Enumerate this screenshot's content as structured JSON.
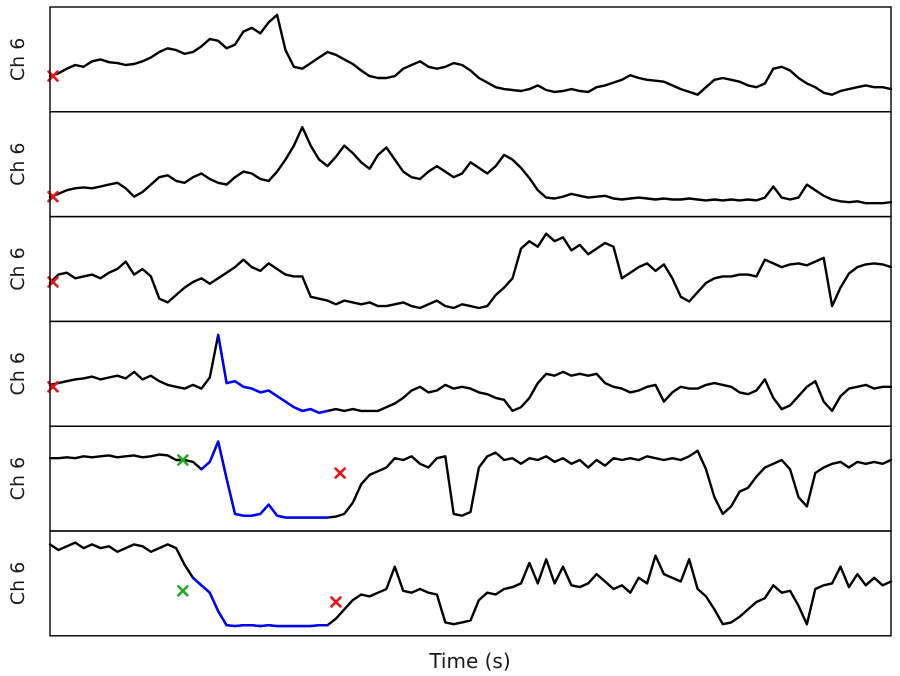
{
  "figure": {
    "xlabel": "Time (s)"
  },
  "colors": {
    "signal": "#000000",
    "highlight": "#0000ff",
    "start_marker": "#22aa22",
    "end_marker": "#e8141c"
  },
  "chart_data": [
    {
      "type": "line",
      "ylabel": "Ch 6",
      "x_range": [
        0,
        100
      ],
      "y_range": [
        0,
        1
      ],
      "grid": false,
      "series": [
        {
          "values": [
            0.32,
            0.35,
            0.4,
            0.44,
            0.42,
            0.48,
            0.5,
            0.47,
            0.46,
            0.44,
            0.45,
            0.48,
            0.52,
            0.58,
            0.62,
            0.6,
            0.56,
            0.58,
            0.64,
            0.72,
            0.7,
            0.62,
            0.66,
            0.8,
            0.84,
            0.78,
            0.9,
            0.98,
            0.6,
            0.42,
            0.4,
            0.46,
            0.52,
            0.58,
            0.55,
            0.5,
            0.45,
            0.38,
            0.32,
            0.3,
            0.3,
            0.32,
            0.4,
            0.44,
            0.48,
            0.42,
            0.4,
            0.42,
            0.46,
            0.44,
            0.38,
            0.3,
            0.25,
            0.2,
            0.18,
            0.17,
            0.16,
            0.18,
            0.22,
            0.17,
            0.15,
            0.16,
            0.18,
            0.16,
            0.15,
            0.2,
            0.22,
            0.25,
            0.28,
            0.33,
            0.3,
            0.28,
            0.27,
            0.26,
            0.22,
            0.18,
            0.15,
            0.12,
            0.2,
            0.28,
            0.3,
            0.28,
            0.26,
            0.22,
            0.2,
            0.24,
            0.4,
            0.42,
            0.38,
            0.3,
            0.24,
            0.2,
            0.14,
            0.12,
            0.16,
            0.18,
            0.2,
            0.22,
            0.2,
            0.2,
            0.18
          ]
        }
      ],
      "highlight": null,
      "markers": [
        {
          "shape": "x",
          "color_key": "end_marker",
          "x": 0.2,
          "y": 0.32
        }
      ]
    },
    {
      "type": "line",
      "ylabel": "Ch 6",
      "x_range": [
        0,
        100
      ],
      "y_range": [
        0,
        1
      ],
      "grid": false,
      "series": [
        {
          "values": [
            0.15,
            0.18,
            0.22,
            0.24,
            0.25,
            0.24,
            0.26,
            0.28,
            0.3,
            0.24,
            0.15,
            0.2,
            0.28,
            0.36,
            0.38,
            0.32,
            0.3,
            0.36,
            0.4,
            0.34,
            0.3,
            0.28,
            0.36,
            0.42,
            0.4,
            0.34,
            0.32,
            0.42,
            0.55,
            0.7,
            0.9,
            0.7,
            0.55,
            0.48,
            0.58,
            0.7,
            0.62,
            0.52,
            0.45,
            0.6,
            0.68,
            0.55,
            0.42,
            0.36,
            0.34,
            0.42,
            0.48,
            0.42,
            0.36,
            0.4,
            0.52,
            0.46,
            0.4,
            0.48,
            0.6,
            0.55,
            0.46,
            0.35,
            0.22,
            0.14,
            0.13,
            0.15,
            0.18,
            0.16,
            0.14,
            0.15,
            0.16,
            0.13,
            0.12,
            0.13,
            0.14,
            0.13,
            0.12,
            0.13,
            0.12,
            0.12,
            0.13,
            0.12,
            0.11,
            0.12,
            0.11,
            0.12,
            0.11,
            0.12,
            0.11,
            0.14,
            0.26,
            0.14,
            0.12,
            0.14,
            0.28,
            0.22,
            0.16,
            0.12,
            0.1,
            0.09,
            0.1,
            0.08,
            0.08,
            0.08,
            0.09
          ]
        }
      ],
      "highlight": null,
      "markers": [
        {
          "shape": "x",
          "color_key": "end_marker",
          "x": 0.2,
          "y": 0.15
        }
      ]
    },
    {
      "type": "line",
      "ylabel": "Ch 6",
      "x_range": [
        0,
        100
      ],
      "y_range": [
        0,
        1
      ],
      "grid": false,
      "series": [
        {
          "values": [
            0.35,
            0.44,
            0.46,
            0.4,
            0.42,
            0.44,
            0.4,
            0.46,
            0.5,
            0.58,
            0.44,
            0.5,
            0.42,
            0.18,
            0.14,
            0.22,
            0.3,
            0.36,
            0.4,
            0.34,
            0.4,
            0.46,
            0.52,
            0.6,
            0.52,
            0.48,
            0.56,
            0.5,
            0.44,
            0.42,
            0.42,
            0.2,
            0.18,
            0.16,
            0.12,
            0.16,
            0.14,
            0.12,
            0.14,
            0.1,
            0.1,
            0.12,
            0.14,
            0.1,
            0.08,
            0.12,
            0.16,
            0.1,
            0.08,
            0.12,
            0.1,
            0.08,
            0.1,
            0.22,
            0.3,
            0.4,
            0.72,
            0.8,
            0.74,
            0.88,
            0.8,
            0.84,
            0.7,
            0.76,
            0.66,
            0.72,
            0.78,
            0.74,
            0.4,
            0.46,
            0.52,
            0.56,
            0.48,
            0.55,
            0.4,
            0.2,
            0.15,
            0.25,
            0.35,
            0.4,
            0.42,
            0.42,
            0.44,
            0.44,
            0.42,
            0.6,
            0.56,
            0.52,
            0.55,
            0.56,
            0.54,
            0.58,
            0.62,
            0.1,
            0.3,
            0.45,
            0.52,
            0.55,
            0.56,
            0.55,
            0.52
          ]
        }
      ],
      "highlight": null,
      "markers": [
        {
          "shape": "x",
          "color_key": "end_marker",
          "x": 0.2,
          "y": 0.36
        }
      ]
    },
    {
      "type": "line",
      "ylabel": "Ch 6",
      "x_range": [
        0,
        100
      ],
      "y_range": [
        0,
        1
      ],
      "grid": false,
      "series": [
        {
          "values": [
            0.38,
            0.4,
            0.42,
            0.44,
            0.45,
            0.47,
            0.44,
            0.46,
            0.48,
            0.45,
            0.52,
            0.44,
            0.48,
            0.42,
            0.38,
            0.36,
            0.34,
            0.38,
            0.34,
            0.46,
            0.92,
            0.4,
            0.42,
            0.36,
            0.34,
            0.3,
            0.32,
            0.26,
            0.2,
            0.14,
            0.1,
            0.12,
            0.08,
            0.1,
            0.12,
            0.1,
            0.12,
            0.1,
            0.1,
            0.1,
            0.14,
            0.18,
            0.24,
            0.32,
            0.36,
            0.3,
            0.32,
            0.38,
            0.34,
            0.36,
            0.34,
            0.3,
            0.28,
            0.24,
            0.22,
            0.1,
            0.14,
            0.24,
            0.4,
            0.5,
            0.48,
            0.52,
            0.48,
            0.5,
            0.48,
            0.5,
            0.4,
            0.36,
            0.34,
            0.3,
            0.32,
            0.36,
            0.38,
            0.2,
            0.3,
            0.36,
            0.34,
            0.34,
            0.38,
            0.4,
            0.38,
            0.36,
            0.3,
            0.28,
            0.32,
            0.44,
            0.24,
            0.12,
            0.16,
            0.26,
            0.36,
            0.42,
            0.2,
            0.1,
            0.26,
            0.34,
            0.36,
            0.38,
            0.34,
            0.36,
            0.36
          ]
        }
      ],
      "highlight": {
        "x_start": 19.5,
        "x_end": 33.0
      },
      "markers": [
        {
          "shape": "x",
          "color_key": "end_marker",
          "x": 0.2,
          "y": 0.36
        }
      ]
    },
    {
      "type": "line",
      "ylabel": "Ch 6",
      "x_range": [
        0,
        100
      ],
      "y_range": [
        0,
        1
      ],
      "grid": false,
      "series": [
        {
          "values": [
            0.72,
            0.72,
            0.73,
            0.72,
            0.74,
            0.73,
            0.74,
            0.75,
            0.73,
            0.74,
            0.75,
            0.73,
            0.74,
            0.76,
            0.75,
            0.7,
            0.7,
            0.68,
            0.6,
            0.68,
            0.9,
            0.5,
            0.12,
            0.1,
            0.1,
            0.12,
            0.22,
            0.1,
            0.08,
            0.08,
            0.08,
            0.08,
            0.08,
            0.08,
            0.09,
            0.12,
            0.24,
            0.44,
            0.54,
            0.58,
            0.62,
            0.72,
            0.7,
            0.74,
            0.66,
            0.62,
            0.72,
            0.74,
            0.12,
            0.1,
            0.14,
            0.62,
            0.74,
            0.78,
            0.7,
            0.72,
            0.66,
            0.72,
            0.7,
            0.74,
            0.68,
            0.72,
            0.66,
            0.7,
            0.62,
            0.7,
            0.64,
            0.72,
            0.7,
            0.72,
            0.7,
            0.74,
            0.72,
            0.7,
            0.72,
            0.7,
            0.74,
            0.8,
            0.6,
            0.3,
            0.12,
            0.2,
            0.36,
            0.4,
            0.52,
            0.62,
            0.66,
            0.7,
            0.6,
            0.3,
            0.2,
            0.56,
            0.62,
            0.66,
            0.68,
            0.62,
            0.68,
            0.66,
            0.68,
            0.66,
            0.7
          ]
        }
      ],
      "highlight": {
        "x_start": 17.5,
        "x_end": 33.5
      },
      "markers": [
        {
          "shape": "x",
          "color_key": "start_marker",
          "x": 15.8,
          "y": 0.7
        },
        {
          "shape": "x",
          "color_key": "end_marker",
          "x": 34.5,
          "y": 0.56
        }
      ]
    },
    {
      "type": "line",
      "ylabel": "Ch 6",
      "x_range": [
        0,
        100
      ],
      "y_range": [
        0,
        1
      ],
      "grid": false,
      "series": [
        {
          "values": [
            0.92,
            0.86,
            0.9,
            0.94,
            0.88,
            0.92,
            0.88,
            0.9,
            0.84,
            0.88,
            0.92,
            0.9,
            0.84,
            0.88,
            0.92,
            0.88,
            0.7,
            0.56,
            0.48,
            0.4,
            0.2,
            0.05,
            0.04,
            0.05,
            0.05,
            0.04,
            0.05,
            0.04,
            0.04,
            0.04,
            0.04,
            0.04,
            0.05,
            0.05,
            0.12,
            0.22,
            0.32,
            0.38,
            0.36,
            0.4,
            0.44,
            0.68,
            0.42,
            0.4,
            0.44,
            0.4,
            0.38,
            0.08,
            0.06,
            0.08,
            0.1,
            0.32,
            0.4,
            0.38,
            0.44,
            0.46,
            0.5,
            0.72,
            0.5,
            0.76,
            0.5,
            0.68,
            0.48,
            0.46,
            0.5,
            0.6,
            0.52,
            0.44,
            0.48,
            0.4,
            0.56,
            0.5,
            0.8,
            0.6,
            0.56,
            0.52,
            0.76,
            0.44,
            0.36,
            0.22,
            0.06,
            0.08,
            0.14,
            0.22,
            0.3,
            0.34,
            0.48,
            0.4,
            0.42,
            0.26,
            0.06,
            0.44,
            0.48,
            0.5,
            0.68,
            0.46,
            0.6,
            0.48,
            0.56,
            0.48,
            0.52
          ]
        }
      ],
      "highlight": {
        "x_start": 17.0,
        "x_end": 33.5
      },
      "markers": [
        {
          "shape": "x",
          "color_key": "start_marker",
          "x": 15.8,
          "y": 0.42
        },
        {
          "shape": "x",
          "color_key": "end_marker",
          "x": 34.0,
          "y": 0.3
        }
      ]
    }
  ]
}
